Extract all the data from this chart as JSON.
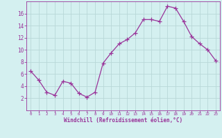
{
  "x": [
    0,
    1,
    2,
    3,
    4,
    5,
    6,
    7,
    8,
    9,
    10,
    11,
    12,
    13,
    14,
    15,
    16,
    17,
    18,
    19,
    20,
    21,
    22,
    23
  ],
  "y": [
    6.5,
    5.0,
    3.0,
    2.5,
    4.8,
    4.5,
    2.8,
    2.2,
    3.0,
    7.8,
    9.5,
    11.0,
    11.7,
    12.8,
    15.0,
    15.0,
    14.7,
    17.2,
    16.9,
    14.7,
    12.2,
    11.0,
    10.0,
    8.2
  ],
  "line_color": "#993399",
  "marker": "+",
  "marker_size": 4,
  "bg_color": "#d4f0f0",
  "grid_color": "#b8d8d8",
  "xlabel": "Windchill (Refroidissement éolien,°C)",
  "xlabel_color": "#993399",
  "tick_color": "#993399",
  "axis_color": "#993399",
  "ylim": [
    0,
    18
  ],
  "xlim": [
    -0.5,
    23.5
  ],
  "yticks": [
    2,
    4,
    6,
    8,
    10,
    12,
    14,
    16
  ],
  "xticks": [
    0,
    1,
    2,
    3,
    4,
    5,
    6,
    7,
    8,
    9,
    10,
    11,
    12,
    13,
    14,
    15,
    16,
    17,
    18,
    19,
    20,
    21,
    22,
    23
  ]
}
